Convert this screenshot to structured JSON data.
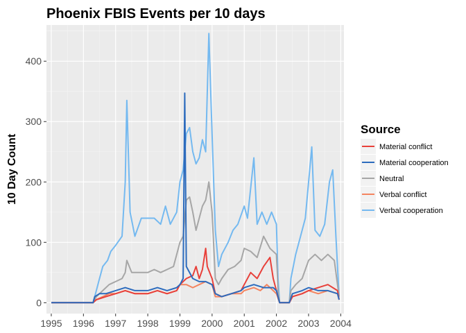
{
  "chart_data": {
    "type": "line",
    "title": "Phoenix FBIS Events per 10 days",
    "xlabel": "",
    "ylabel": "10 Day Count",
    "xlim": [
      1994.85,
      2004.1
    ],
    "ylim": [
      -18,
      460
    ],
    "x_ticks": [
      "1995",
      "1996",
      "1997",
      "1998",
      "1999",
      "2000",
      "2001",
      "2002",
      "2003",
      "2004"
    ],
    "y_ticks": [
      0,
      100,
      200,
      300,
      400
    ],
    "grid": true,
    "legend": {
      "title": "Source",
      "placement": "right"
    },
    "series": [
      {
        "name": "Verbal cooperation",
        "color": "#74b9f0",
        "points": [
          [
            1995.0,
            0
          ],
          [
            1996.0,
            0
          ],
          [
            1996.3,
            0
          ],
          [
            1996.35,
            10
          ],
          [
            1996.5,
            40
          ],
          [
            1996.6,
            60
          ],
          [
            1996.75,
            70
          ],
          [
            1996.85,
            85
          ],
          [
            1997.0,
            95
          ],
          [
            1997.2,
            110
          ],
          [
            1997.3,
            200
          ],
          [
            1997.35,
            335
          ],
          [
            1997.45,
            150
          ],
          [
            1997.6,
            110
          ],
          [
            1997.8,
            140
          ],
          [
            1998.0,
            140
          ],
          [
            1998.2,
            140
          ],
          [
            1998.4,
            130
          ],
          [
            1998.55,
            160
          ],
          [
            1998.7,
            130
          ],
          [
            1998.9,
            150
          ],
          [
            1999.0,
            200
          ],
          [
            1999.1,
            220
          ],
          [
            1999.2,
            280
          ],
          [
            1999.3,
            290
          ],
          [
            1999.4,
            250
          ],
          [
            1999.5,
            230
          ],
          [
            1999.6,
            240
          ],
          [
            1999.7,
            270
          ],
          [
            1999.8,
            250
          ],
          [
            1999.9,
            446
          ],
          [
            2000.0,
            280
          ],
          [
            2000.1,
            120
          ],
          [
            2000.2,
            60
          ],
          [
            2000.3,
            80
          ],
          [
            2000.5,
            100
          ],
          [
            2000.65,
            120
          ],
          [
            2000.8,
            130
          ],
          [
            2001.0,
            160
          ],
          [
            2001.1,
            140
          ],
          [
            2001.3,
            240
          ],
          [
            2001.4,
            130
          ],
          [
            2001.55,
            150
          ],
          [
            2001.7,
            130
          ],
          [
            2001.85,
            150
          ],
          [
            2002.0,
            130
          ],
          [
            2002.05,
            40
          ],
          [
            2002.1,
            0
          ],
          [
            2002.4,
            0
          ],
          [
            2002.45,
            40
          ],
          [
            2002.6,
            80
          ],
          [
            2002.75,
            110
          ],
          [
            2002.9,
            140
          ],
          [
            2003.0,
            200
          ],
          [
            2003.1,
            258
          ],
          [
            2003.2,
            120
          ],
          [
            2003.35,
            110
          ],
          [
            2003.5,
            130
          ],
          [
            2003.65,
            200
          ],
          [
            2003.75,
            220
          ],
          [
            2003.85,
            110
          ],
          [
            2003.95,
            10
          ]
        ]
      },
      {
        "name": "Neutral",
        "color": "#a6a6a6",
        "points": [
          [
            1995.0,
            0
          ],
          [
            1996.0,
            0
          ],
          [
            1996.3,
            0
          ],
          [
            1996.4,
            10
          ],
          [
            1996.6,
            20
          ],
          [
            1996.8,
            30
          ],
          [
            1997.0,
            35
          ],
          [
            1997.2,
            40
          ],
          [
            1997.3,
            50
          ],
          [
            1997.35,
            70
          ],
          [
            1997.5,
            50
          ],
          [
            1997.7,
            50
          ],
          [
            1998.0,
            50
          ],
          [
            1998.2,
            55
          ],
          [
            1998.4,
            50
          ],
          [
            1998.6,
            55
          ],
          [
            1998.8,
            60
          ],
          [
            1999.0,
            100
          ],
          [
            1999.1,
            110
          ],
          [
            1999.2,
            170
          ],
          [
            1999.3,
            175
          ],
          [
            1999.4,
            150
          ],
          [
            1999.5,
            120
          ],
          [
            1999.6,
            140
          ],
          [
            1999.7,
            160
          ],
          [
            1999.8,
            170
          ],
          [
            1999.9,
            200
          ],
          [
            2000.0,
            150
          ],
          [
            2000.1,
            40
          ],
          [
            2000.2,
            30
          ],
          [
            2000.3,
            40
          ],
          [
            2000.5,
            55
          ],
          [
            2000.7,
            60
          ],
          [
            2000.9,
            70
          ],
          [
            2001.0,
            90
          ],
          [
            2001.2,
            85
          ],
          [
            2001.4,
            75
          ],
          [
            2001.6,
            110
          ],
          [
            2001.8,
            90
          ],
          [
            2002.0,
            80
          ],
          [
            2002.05,
            20
          ],
          [
            2002.1,
            0
          ],
          [
            2002.4,
            0
          ],
          [
            2002.45,
            20
          ],
          [
            2002.6,
            30
          ],
          [
            2002.8,
            40
          ],
          [
            2003.0,
            70
          ],
          [
            2003.2,
            80
          ],
          [
            2003.4,
            70
          ],
          [
            2003.6,
            80
          ],
          [
            2003.8,
            70
          ],
          [
            2003.95,
            10
          ]
        ]
      },
      {
        "name": "Verbal conflict",
        "color": "#f4845f",
        "points": [
          [
            1995.0,
            0
          ],
          [
            1996.0,
            0
          ],
          [
            1996.3,
            0
          ],
          [
            1996.4,
            5
          ],
          [
            1996.6,
            10
          ],
          [
            1996.8,
            15
          ],
          [
            1997.0,
            15
          ],
          [
            1997.3,
            20
          ],
          [
            1997.6,
            15
          ],
          [
            1998.0,
            15
          ],
          [
            1998.3,
            20
          ],
          [
            1998.6,
            15
          ],
          [
            1998.9,
            20
          ],
          [
            1999.0,
            30
          ],
          [
            1999.2,
            30
          ],
          [
            1999.4,
            25
          ],
          [
            1999.6,
            30
          ],
          [
            1999.8,
            35
          ],
          [
            2000.0,
            30
          ],
          [
            2000.1,
            10
          ],
          [
            2000.3,
            10
          ],
          [
            2000.6,
            15
          ],
          [
            2000.9,
            15
          ],
          [
            2001.0,
            20
          ],
          [
            2001.3,
            25
          ],
          [
            2001.5,
            20
          ],
          [
            2001.7,
            30
          ],
          [
            2001.9,
            20
          ],
          [
            2002.0,
            15
          ],
          [
            2002.1,
            0
          ],
          [
            2002.4,
            0
          ],
          [
            2002.5,
            10
          ],
          [
            2002.8,
            15
          ],
          [
            2003.0,
            20
          ],
          [
            2003.3,
            15
          ],
          [
            2003.6,
            20
          ],
          [
            2003.9,
            15
          ],
          [
            2003.95,
            5
          ]
        ]
      },
      {
        "name": "Material conflict",
        "color": "#e8403a",
        "points": [
          [
            1995.0,
            0
          ],
          [
            1996.0,
            0
          ],
          [
            1996.3,
            0
          ],
          [
            1996.4,
            5
          ],
          [
            1996.7,
            10
          ],
          [
            1997.0,
            15
          ],
          [
            1997.3,
            20
          ],
          [
            1997.6,
            15
          ],
          [
            1998.0,
            15
          ],
          [
            1998.3,
            20
          ],
          [
            1998.6,
            15
          ],
          [
            1998.9,
            20
          ],
          [
            1999.0,
            30
          ],
          [
            1999.2,
            40
          ],
          [
            1999.4,
            45
          ],
          [
            1999.5,
            60
          ],
          [
            1999.6,
            40
          ],
          [
            1999.7,
            55
          ],
          [
            1999.8,
            90
          ],
          [
            1999.85,
            60
          ],
          [
            2000.0,
            40
          ],
          [
            2000.1,
            15
          ],
          [
            2000.3,
            10
          ],
          [
            2000.6,
            15
          ],
          [
            2000.9,
            20
          ],
          [
            2001.0,
            30
          ],
          [
            2001.2,
            50
          ],
          [
            2001.4,
            40
          ],
          [
            2001.6,
            60
          ],
          [
            2001.8,
            75
          ],
          [
            2001.9,
            40
          ],
          [
            2002.0,
            20
          ],
          [
            2002.1,
            0
          ],
          [
            2002.4,
            0
          ],
          [
            2002.5,
            10
          ],
          [
            2002.8,
            15
          ],
          [
            2003.0,
            20
          ],
          [
            2003.3,
            25
          ],
          [
            2003.6,
            30
          ],
          [
            2003.9,
            20
          ],
          [
            2003.95,
            5
          ]
        ]
      },
      {
        "name": "Material cooperation",
        "color": "#2c6bbd",
        "points": [
          [
            1995.0,
            0
          ],
          [
            1996.0,
            0
          ],
          [
            1996.3,
            0
          ],
          [
            1996.35,
            10
          ],
          [
            1996.5,
            15
          ],
          [
            1996.7,
            15
          ],
          [
            1997.0,
            20
          ],
          [
            1997.3,
            25
          ],
          [
            1997.6,
            20
          ],
          [
            1998.0,
            20
          ],
          [
            1998.3,
            25
          ],
          [
            1998.6,
            20
          ],
          [
            1998.9,
            25
          ],
          [
            1999.0,
            30
          ],
          [
            1999.1,
            40
          ],
          [
            1999.15,
            347
          ],
          [
            1999.2,
            60
          ],
          [
            1999.4,
            40
          ],
          [
            1999.6,
            35
          ],
          [
            1999.8,
            35
          ],
          [
            2000.0,
            30
          ],
          [
            2000.1,
            15
          ],
          [
            2000.3,
            10
          ],
          [
            2000.6,
            15
          ],
          [
            2000.9,
            20
          ],
          [
            2001.0,
            25
          ],
          [
            2001.3,
            30
          ],
          [
            2001.6,
            25
          ],
          [
            2001.9,
            25
          ],
          [
            2002.0,
            20
          ],
          [
            2002.1,
            0
          ],
          [
            2002.4,
            0
          ],
          [
            2002.5,
            15
          ],
          [
            2002.8,
            20
          ],
          [
            2003.0,
            25
          ],
          [
            2003.3,
            20
          ],
          [
            2003.6,
            20
          ],
          [
            2003.9,
            15
          ],
          [
            2003.95,
            5
          ]
        ]
      }
    ],
    "legend_order": [
      "Material conflict",
      "Material cooperation",
      "Neutral",
      "Verbal conflict",
      "Verbal cooperation"
    ]
  }
}
